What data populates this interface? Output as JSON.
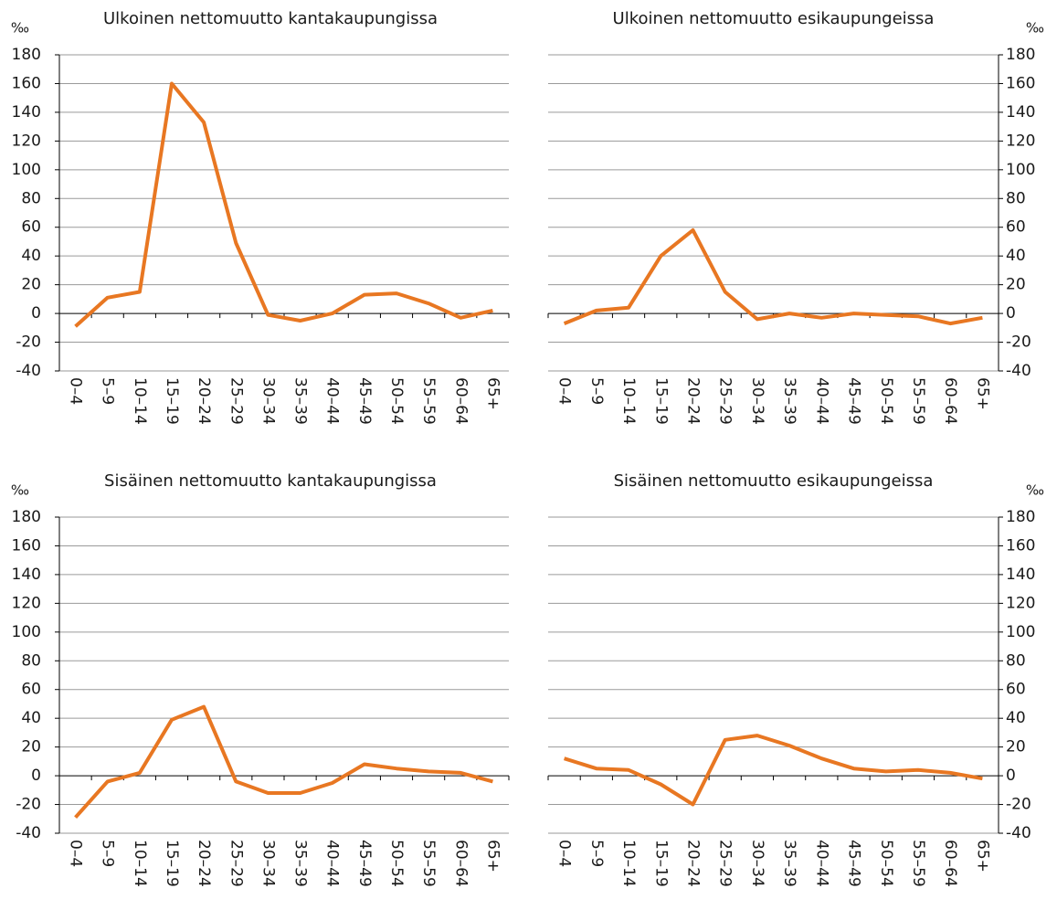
{
  "chart_data": [
    {
      "type": "line",
      "title": "Ulkoinen nettomuutto kantakaupungissa",
      "y_label": "‰",
      "y_axis": "left",
      "categories": [
        "0–4",
        "5–9",
        "10–14",
        "15–19",
        "20–24",
        "25–29",
        "30–34",
        "35–39",
        "40–44",
        "45–49",
        "50–54",
        "55–59",
        "60–64",
        "65+"
      ],
      "values": [
        -9,
        11,
        15,
        160,
        133,
        49,
        -1,
        -5,
        0,
        13,
        14,
        7,
        -3,
        2
      ],
      "color": "#e87722",
      "ylim": [
        -40,
        180
      ],
      "yticks": [
        -40,
        -20,
        0,
        20,
        40,
        60,
        80,
        100,
        120,
        140,
        160,
        180
      ],
      "grid": true
    },
    {
      "type": "line",
      "title": "Ulkoinen nettomuutto esikaupungeissa",
      "y_label": "‰",
      "y_axis": "right",
      "categories": [
        "0–4",
        "5–9",
        "10–14",
        "15–19",
        "20–24",
        "25–29",
        "30–34",
        "35–39",
        "40–44",
        "45–49",
        "50–54",
        "55–59",
        "60–64",
        "65+"
      ],
      "values": [
        -7,
        2,
        4,
        40,
        58,
        15,
        -4,
        0,
        -3,
        0,
        -1,
        -2,
        -7,
        -3
      ],
      "color": "#e87722",
      "ylim": [
        -40,
        180
      ],
      "yticks": [
        -40,
        -20,
        0,
        20,
        40,
        60,
        80,
        100,
        120,
        140,
        160,
        180
      ],
      "grid": true
    },
    {
      "type": "line",
      "title": "Sisäinen nettomuutto kantakaupungissa",
      "y_label": "‰",
      "y_axis": "left",
      "categories": [
        "0–4",
        "5–9",
        "10–14",
        "15–19",
        "20–24",
        "25–29",
        "30–34",
        "35–39",
        "40–44",
        "45–49",
        "50–54",
        "55–59",
        "60–64",
        "65+"
      ],
      "values": [
        -29,
        -4,
        2,
        39,
        48,
        -4,
        -12,
        -12,
        -5,
        8,
        5,
        3,
        2,
        -4
      ],
      "color": "#e87722",
      "ylim": [
        -40,
        180
      ],
      "yticks": [
        -40,
        -20,
        0,
        20,
        40,
        60,
        80,
        100,
        120,
        140,
        160,
        180
      ],
      "grid": true
    },
    {
      "type": "line",
      "title": "Sisäinen nettomuutto esikaupungeissa",
      "y_label": "‰",
      "y_axis": "right",
      "categories": [
        "0–4",
        "5–9",
        "10–14",
        "15–19",
        "20–24",
        "25–29",
        "30–34",
        "35–39",
        "40–44",
        "45–49",
        "50–54",
        "55–59",
        "60–64",
        "65+"
      ],
      "values": [
        12,
        5,
        4,
        -6,
        -20,
        25,
        28,
        21,
        12,
        5,
        3,
        4,
        2,
        -2
      ],
      "color": "#e87722",
      "ylim": [
        -40,
        180
      ],
      "yticks": [
        -40,
        -20,
        0,
        20,
        40,
        60,
        80,
        100,
        120,
        140,
        160,
        180
      ],
      "grid": true
    }
  ]
}
